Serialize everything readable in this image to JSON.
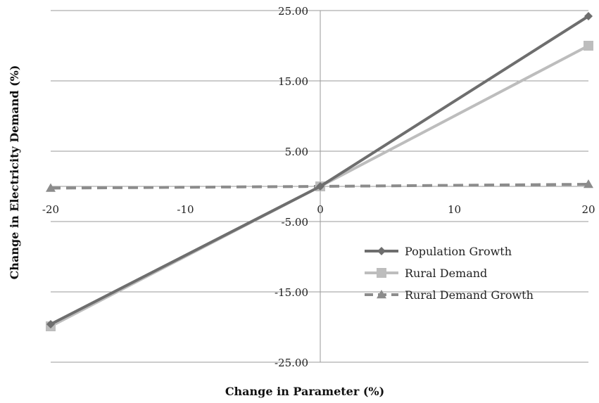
{
  "chart_data": {
    "type": "line",
    "xlabel": "Change in Parameter (%)",
    "ylabel": "Change in Electricity Demand (%)",
    "xlim": [
      -20,
      20
    ],
    "ylim": [
      -25,
      25
    ],
    "grid": true,
    "legend_position": "right",
    "x_ticks": [
      "-20",
      "-10",
      "0",
      "10",
      "20"
    ],
    "y_ticks": [
      "25.00",
      "15.00",
      "5.00",
      "-5.00",
      "-15.00",
      "-25.00"
    ],
    "series": [
      {
        "name": "Population Growth",
        "color": "#6e6e6e",
        "marker": "diamond",
        "dash": "solid",
        "x": [
          -20,
          0,
          20
        ],
        "y": [
          -19.6,
          0,
          24.2
        ]
      },
      {
        "name": "Rural Demand",
        "color": "#bdbdbd",
        "marker": "square",
        "dash": "solid",
        "x": [
          -20,
          0,
          20
        ],
        "y": [
          -19.9,
          0,
          20.0
        ]
      },
      {
        "name": "Rural Demand Growth",
        "color": "#8c8c8c",
        "marker": "triangle",
        "dash": "dashed",
        "x": [
          -20,
          0,
          20
        ],
        "y": [
          -0.25,
          0,
          0.3
        ]
      }
    ]
  }
}
